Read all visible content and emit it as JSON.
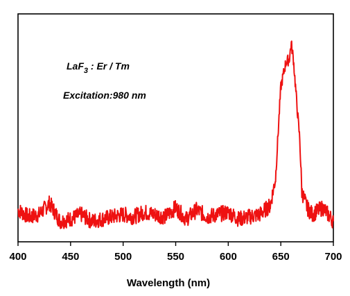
{
  "chart_data": {
    "type": "line",
    "title": "",
    "xlabel": "Wavelength (nm)",
    "ylabel": "",
    "xlim": [
      400,
      700
    ],
    "ylim": [
      0,
      1
    ],
    "x_ticks": [
      "400",
      "450",
      "500",
      "550",
      "600",
      "650",
      "700"
    ],
    "grid": false,
    "legend": "none",
    "annotations": {
      "formula_base": "LaF",
      "formula_sub": "3",
      "formula_rest": " : Er / Tm",
      "excitation": "Excitation:980 nm"
    },
    "series": [
      {
        "color": "#ee1111",
        "x": [
          400,
          410,
          420,
          430,
          440,
          450,
          460,
          470,
          480,
          490,
          500,
          510,
          520,
          530,
          540,
          550,
          560,
          570,
          580,
          590,
          600,
          610,
          620,
          630,
          640,
          645,
          650,
          655,
          658,
          660,
          662,
          665,
          668,
          670,
          675,
          680,
          690,
          700
        ],
        "y": [
          0.14,
          0.11,
          0.12,
          0.17,
          0.09,
          0.1,
          0.12,
          0.09,
          0.1,
          0.11,
          0.12,
          0.11,
          0.13,
          0.12,
          0.11,
          0.15,
          0.1,
          0.14,
          0.11,
          0.12,
          0.13,
          0.1,
          0.11,
          0.12,
          0.16,
          0.28,
          0.68,
          0.79,
          0.8,
          0.87,
          0.8,
          0.62,
          0.45,
          0.22,
          0.15,
          0.12,
          0.15,
          0.09
        ]
      }
    ]
  }
}
